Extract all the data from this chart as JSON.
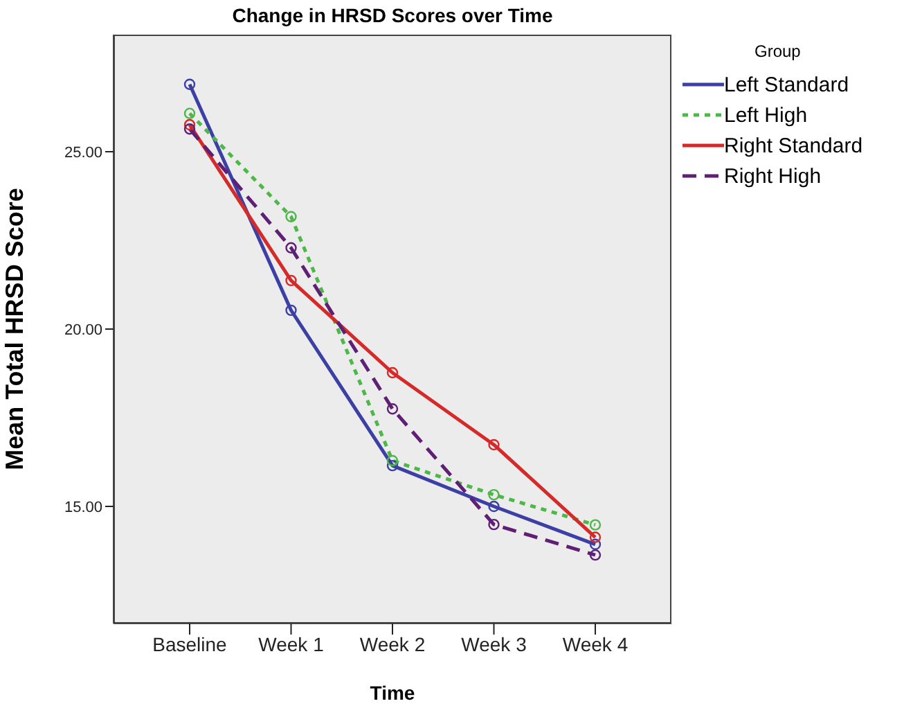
{
  "chart_data": {
    "type": "line",
    "title": "Change in HRSD Scores over Time",
    "xlabel": "Time",
    "ylabel": "Mean Total HRSD Score",
    "legend_title": "Group",
    "categories": [
      "Baseline",
      "Week 1",
      "Week 2",
      "Week 3",
      "Week 4"
    ],
    "series": [
      {
        "name": "Left Standard",
        "color": "#3c3fa4",
        "line_style": "solid",
        "values": [
          26.9,
          20.53,
          16.15,
          15.0,
          13.93
        ]
      },
      {
        "name": "Left High",
        "color": "#4db848",
        "line_style": "dotted",
        "values": [
          26.08,
          23.17,
          16.29,
          15.33,
          14.48
        ]
      },
      {
        "name": "Right Standard",
        "color": "#d52a2a",
        "line_style": "solid",
        "values": [
          25.76,
          21.37,
          18.77,
          16.74,
          14.13
        ]
      },
      {
        "name": "Right High",
        "color": "#5e1f74",
        "line_style": "dashed",
        "values": [
          25.64,
          22.29,
          17.75,
          14.49,
          13.63
        ]
      }
    ],
    "ylim": [
      11.7,
      28.3
    ],
    "yticks": [
      {
        "value": 15,
        "label": "15.00"
      },
      {
        "value": 20,
        "label": "20.00"
      },
      {
        "value": 25,
        "label": "25.00"
      }
    ],
    "marker": "circle",
    "legend": "top right",
    "grid": false
  }
}
